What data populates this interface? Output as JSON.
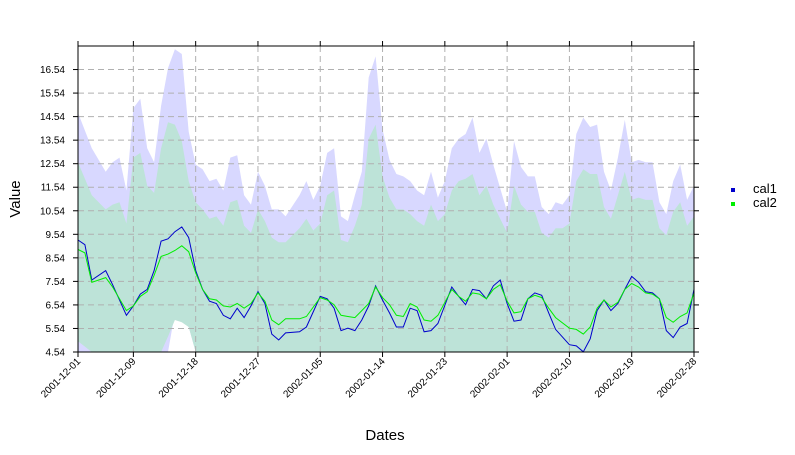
{
  "chart_data": {
    "type": "line",
    "title": "",
    "xlabel": "Dates",
    "ylabel": "Value",
    "ylim": [
      4.54,
      17.54
    ],
    "y_ticks": [
      4.54,
      5.54,
      6.54,
      7.54,
      8.54,
      9.54,
      10.54,
      11.54,
      12.54,
      13.54,
      14.54,
      15.54,
      16.54
    ],
    "y_tick_labels": [
      "4.54",
      "5.54",
      "6.54",
      "7.54",
      "8.54",
      "9.54",
      "10.54",
      "11.54",
      "12.54",
      "13.54",
      "14.54",
      "15.54",
      "16.54"
    ],
    "x_range": [
      "2001-12-01",
      "2002-02-28"
    ],
    "x_ticks": [
      "2001-12-01",
      "2001-12-09",
      "2001-12-18",
      "2001-12-27",
      "2002-01-05",
      "2002-01-14",
      "2002-01-23",
      "2002-02-01",
      "2002-02-10",
      "2002-02-19",
      "2002-02-28"
    ],
    "grid": true,
    "grid_style": "dashed",
    "legend_position": "right",
    "colors": {
      "cal1": "#0000cc",
      "cal2": "#00ee00",
      "cal1_band": "#d8d8ff",
      "cal2_band": "#bde3d8",
      "grid": "#b0b0b0"
    },
    "series": [
      {
        "name": "cal1",
        "x": [
          "2001-12-01",
          "2001-12-02",
          "2001-12-03",
          "2001-12-05",
          "2001-12-06",
          "2001-12-08",
          "2001-12-09",
          "2001-12-10",
          "2001-12-11",
          "2001-12-12",
          "2001-12-13",
          "2001-12-14",
          "2001-12-15",
          "2001-12-16",
          "2001-12-17",
          "2001-12-18",
          "2001-12-19",
          "2001-12-20",
          "2001-12-21",
          "2001-12-22",
          "2001-12-23",
          "2001-12-24",
          "2001-12-25",
          "2001-12-26",
          "2001-12-27",
          "2001-12-28",
          "2001-12-29",
          "2001-12-30",
          "2001-12-31",
          "2002-01-02",
          "2002-01-03",
          "2002-01-05",
          "2002-01-06",
          "2002-01-07",
          "2002-01-08",
          "2002-01-09",
          "2002-01-10",
          "2002-01-11",
          "2002-01-12",
          "2002-01-13",
          "2002-01-14",
          "2002-01-15",
          "2002-01-16",
          "2002-01-17",
          "2002-01-18",
          "2002-01-19",
          "2002-01-20",
          "2002-01-21",
          "2002-01-22",
          "2002-01-24",
          "2002-01-25",
          "2002-01-26",
          "2002-01-27",
          "2002-01-28",
          "2002-01-29",
          "2002-01-30",
          "2002-01-31",
          "2002-02-01",
          "2002-02-02",
          "2002-02-03",
          "2002-02-04",
          "2002-02-05",
          "2002-02-06",
          "2002-02-07",
          "2002-02-08",
          "2002-02-10",
          "2002-02-11",
          "2002-02-12",
          "2002-02-13",
          "2002-02-14",
          "2002-02-15",
          "2002-02-16",
          "2002-02-17",
          "2002-02-18",
          "2002-02-19",
          "2002-02-20",
          "2002-02-21",
          "2002-02-22",
          "2002-02-23",
          "2002-02-24",
          "2002-02-25",
          "2002-02-26",
          "2002-02-27",
          "2002-02-28"
        ],
        "y": [
          9.3,
          9.1,
          7.6,
          8.0,
          7.4,
          6.1,
          6.5,
          7.0,
          7.2,
          8.0,
          9.25,
          9.35,
          9.65,
          9.85,
          9.4,
          8.0,
          7.2,
          6.7,
          6.6,
          6.1,
          5.95,
          6.4,
          6.0,
          6.5,
          7.1,
          6.6,
          5.3,
          5.05,
          5.35,
          5.4,
          5.6,
          6.9,
          6.8,
          6.4,
          5.45,
          5.55,
          5.45,
          5.9,
          6.5,
          7.35,
          6.75,
          6.2,
          5.6,
          5.6,
          6.4,
          6.3,
          5.4,
          5.45,
          5.75,
          7.3,
          6.9,
          6.55,
          7.2,
          7.15,
          6.8,
          7.35,
          7.6,
          6.6,
          5.85,
          5.9,
          6.8,
          7.05,
          6.95,
          6.2,
          5.5,
          4.85,
          4.8,
          4.55,
          5.1,
          6.3,
          6.75,
          6.3,
          6.6,
          7.2,
          7.75,
          7.5,
          7.1,
          7.05,
          6.8,
          5.45,
          5.15,
          5.6,
          5.75,
          7.2
        ]
      },
      {
        "name": "cal2",
        "x": [
          "2001-12-01",
          "2001-12-02",
          "2001-12-03",
          "2001-12-05",
          "2001-12-06",
          "2001-12-08",
          "2001-12-09",
          "2001-12-10",
          "2001-12-11",
          "2001-12-12",
          "2001-12-13",
          "2001-12-14",
          "2001-12-15",
          "2001-12-16",
          "2001-12-17",
          "2001-12-18",
          "2001-12-19",
          "2001-12-20",
          "2001-12-21",
          "2001-12-22",
          "2001-12-23",
          "2001-12-24",
          "2001-12-25",
          "2001-12-26",
          "2001-12-27",
          "2001-12-28",
          "2001-12-29",
          "2001-12-30",
          "2001-12-31",
          "2002-01-02",
          "2002-01-03",
          "2002-01-05",
          "2002-01-06",
          "2002-01-07",
          "2002-01-08",
          "2002-01-09",
          "2002-01-10",
          "2002-01-11",
          "2002-01-12",
          "2002-01-13",
          "2002-01-14",
          "2002-01-15",
          "2002-01-16",
          "2002-01-17",
          "2002-01-18",
          "2002-01-19",
          "2002-01-20",
          "2002-01-21",
          "2002-01-22",
          "2002-01-24",
          "2002-01-25",
          "2002-01-26",
          "2002-01-27",
          "2002-01-28",
          "2002-01-29",
          "2002-01-30",
          "2002-01-31",
          "2002-02-01",
          "2002-02-02",
          "2002-02-03",
          "2002-02-04",
          "2002-02-05",
          "2002-02-06",
          "2002-02-07",
          "2002-02-08",
          "2002-02-10",
          "2002-02-11",
          "2002-02-12",
          "2002-02-13",
          "2002-02-14",
          "2002-02-15",
          "2002-02-16",
          "2002-02-17",
          "2002-02-18",
          "2002-02-19",
          "2002-02-20",
          "2002-02-21",
          "2002-02-22",
          "2002-02-23",
          "2002-02-24",
          "2002-02-25",
          "2002-02-26",
          "2002-02-27",
          "2002-02-28"
        ],
        "y": [
          8.9,
          8.75,
          7.5,
          7.7,
          7.3,
          6.3,
          6.5,
          6.9,
          7.1,
          7.8,
          8.6,
          8.7,
          8.85,
          9.05,
          8.8,
          7.9,
          7.2,
          6.8,
          6.75,
          6.5,
          6.45,
          6.6,
          6.4,
          6.6,
          7.05,
          6.7,
          5.9,
          5.7,
          5.95,
          5.95,
          6.05,
          6.85,
          6.75,
          6.55,
          6.1,
          6.05,
          6.0,
          6.3,
          6.6,
          7.3,
          6.85,
          6.55,
          6.1,
          6.05,
          6.6,
          6.45,
          5.9,
          5.85,
          6.1,
          7.2,
          6.9,
          6.7,
          7.05,
          7.0,
          6.8,
          7.2,
          7.4,
          6.7,
          6.2,
          6.25,
          6.8,
          6.95,
          6.85,
          6.4,
          6.0,
          5.55,
          5.5,
          5.3,
          5.6,
          6.4,
          6.75,
          6.45,
          6.65,
          7.2,
          7.45,
          7.3,
          7.05,
          7.0,
          6.8,
          6.0,
          5.8,
          6.05,
          6.2,
          7.05
        ]
      }
    ],
    "bands": [
      {
        "series": "cal1",
        "x": [
          "2001-12-01",
          "2001-12-03",
          "2001-12-05",
          "2001-12-06",
          "2001-12-07",
          "2001-12-08",
          "2001-12-09",
          "2001-12-10",
          "2001-12-11",
          "2001-12-12",
          "2001-12-13",
          "2001-12-14",
          "2001-12-15",
          "2001-12-16",
          "2001-12-17",
          "2001-12-18",
          "2001-12-19",
          "2001-12-20",
          "2001-12-21",
          "2001-12-22",
          "2001-12-23",
          "2001-12-24",
          "2001-12-25",
          "2001-12-26",
          "2001-12-27",
          "2001-12-28",
          "2001-12-29",
          "2001-12-30",
          "2001-12-31",
          "2002-01-02",
          "2002-01-03",
          "2002-01-04",
          "2002-01-05",
          "2002-01-06",
          "2002-01-07",
          "2002-01-08",
          "2002-01-09",
          "2002-01-10",
          "2002-01-11",
          "2002-01-12",
          "2002-01-13",
          "2002-01-14",
          "2002-01-15",
          "2002-01-16",
          "2002-01-17",
          "2002-01-18",
          "2002-01-19",
          "2002-01-20",
          "2002-01-21",
          "2002-01-22",
          "2002-01-23",
          "2002-01-24",
          "2002-01-25",
          "2002-01-26",
          "2002-01-27",
          "2002-01-28",
          "2002-01-29",
          "2002-01-30",
          "2002-01-31",
          "2002-02-01",
          "2002-02-02",
          "2002-02-03",
          "2002-02-04",
          "2002-02-05",
          "2002-02-06",
          "2002-02-07",
          "2002-02-08",
          "2002-02-09",
          "2002-02-10",
          "2002-02-11",
          "2002-02-12",
          "2002-02-13",
          "2002-02-14",
          "2002-02-15",
          "2002-02-16",
          "2002-02-17",
          "2002-02-18",
          "2002-02-19",
          "2002-02-20",
          "2002-02-21",
          "2002-02-22",
          "2002-02-23",
          "2002-02-24",
          "2002-02-25",
          "2002-02-26",
          "2002-02-27",
          "2002-02-28"
        ],
        "upper": [
          14.7,
          13.2,
          12.2,
          12.6,
          12.8,
          11.4,
          14.9,
          15.3,
          13.2,
          12.6,
          15.0,
          16.6,
          17.4,
          17.2,
          13.9,
          12.5,
          12.3,
          11.8,
          11.9,
          11.4,
          12.8,
          12.9,
          11.2,
          10.8,
          12.2,
          11.6,
          10.6,
          10.6,
          10.3,
          11.2,
          11.8,
          11.0,
          11.6,
          13.0,
          13.2,
          10.3,
          10.1,
          11.2,
          12.2,
          16.2,
          17.1,
          14.0,
          12.7,
          12.1,
          12.0,
          11.8,
          11.4,
          11.2,
          12.2,
          11.1,
          11.8,
          13.2,
          13.6,
          13.8,
          14.5,
          13.0,
          13.6,
          12.5,
          11.5,
          10.5,
          13.5,
          12.4,
          12.0,
          12.0,
          10.7,
          10.4,
          10.9,
          10.8,
          11.2,
          13.8,
          14.5,
          14.1,
          14.2,
          12.2,
          11.4,
          12.8,
          14.4,
          12.6,
          12.7,
          12.6,
          12.6,
          10.9,
          10.4,
          11.8,
          12.5,
          11.0,
          11.6
        ],
        "lower": [
          4.54,
          4.54,
          4.54,
          4.54,
          4.54,
          4.54,
          4.54,
          4.54,
          4.54,
          4.54,
          4.54,
          4.54,
          6.2,
          5.9,
          5.6,
          4.54,
          4.54,
          4.54,
          4.54,
          4.54,
          4.54,
          4.54,
          4.54,
          4.54,
          4.54,
          4.54,
          4.54,
          4.54,
          4.54,
          4.54,
          4.54,
          4.54,
          4.54,
          4.54,
          4.54,
          4.54,
          4.54,
          4.54,
          4.54,
          4.54,
          4.54,
          4.54,
          4.54,
          4.54,
          4.54,
          4.54,
          4.54,
          4.54,
          4.54,
          4.54,
          4.54,
          4.54,
          4.54,
          4.54,
          4.54,
          4.54,
          4.54,
          4.54,
          4.54,
          4.54,
          4.54,
          4.54,
          4.54,
          4.54,
          4.54,
          4.54,
          4.54,
          4.54,
          4.54,
          4.54,
          4.54,
          4.54,
          4.54,
          4.54,
          4.54,
          4.54,
          4.54,
          4.54,
          4.54,
          4.54,
          4.54,
          4.54,
          4.54,
          4.54,
          4.54,
          4.54,
          4.54
        ]
      },
      {
        "series": "cal2",
        "x": [
          "2001-12-01",
          "2001-12-03",
          "2001-12-05",
          "2001-12-06",
          "2001-12-07",
          "2001-12-08",
          "2001-12-09",
          "2001-12-10",
          "2001-12-11",
          "2001-12-12",
          "2001-12-13",
          "2001-12-14",
          "2001-12-15",
          "2001-12-16",
          "2001-12-17",
          "2001-12-18",
          "2001-12-19",
          "2001-12-20",
          "2001-12-21",
          "2001-12-22",
          "2001-12-23",
          "2001-12-24",
          "2001-12-25",
          "2001-12-26",
          "2001-12-27",
          "2001-12-28",
          "2001-12-29",
          "2001-12-30",
          "2001-12-31",
          "2002-01-02",
          "2002-01-03",
          "2002-01-04",
          "2002-01-05",
          "2002-01-06",
          "2002-01-07",
          "2002-01-08",
          "2002-01-09",
          "2002-01-10",
          "2002-01-11",
          "2002-01-12",
          "2002-01-13",
          "2002-01-14",
          "2002-01-15",
          "2002-01-16",
          "2002-01-17",
          "2002-01-18",
          "2002-01-19",
          "2002-01-20",
          "2002-01-21",
          "2002-01-22",
          "2002-01-23",
          "2002-01-24",
          "2002-01-25",
          "2002-01-26",
          "2002-01-27",
          "2002-01-28",
          "2002-01-29",
          "2002-01-30",
          "2002-01-31",
          "2002-02-01",
          "2002-02-02",
          "2002-02-03",
          "2002-02-04",
          "2002-02-05",
          "2002-02-06",
          "2002-02-07",
          "2002-02-08",
          "2002-02-09",
          "2002-02-10",
          "2002-02-11",
          "2002-02-12",
          "2002-02-13",
          "2002-02-14",
          "2002-02-15",
          "2002-02-16",
          "2002-02-17",
          "2002-02-18",
          "2002-02-19",
          "2002-02-20",
          "2002-02-21",
          "2002-02-22",
          "2002-02-23",
          "2002-02-24",
          "2002-02-25",
          "2002-02-26",
          "2002-02-27",
          "2002-02-28"
        ],
        "upper": [
          12.6,
          11.2,
          10.6,
          10.8,
          10.9,
          10.0,
          12.8,
          13.0,
          11.6,
          11.3,
          13.2,
          14.3,
          14.2,
          13.5,
          11.8,
          10.9,
          10.6,
          10.2,
          10.3,
          9.9,
          10.9,
          11.0,
          9.9,
          9.6,
          10.6,
          10.1,
          9.4,
          9.2,
          9.2,
          9.8,
          10.2,
          9.7,
          10.0,
          11.2,
          11.4,
          9.3,
          9.2,
          9.9,
          10.8,
          13.6,
          14.2,
          12.0,
          11.1,
          10.6,
          10.6,
          10.4,
          10.1,
          9.9,
          10.8,
          10.1,
          10.4,
          11.4,
          11.8,
          11.9,
          12.1,
          11.2,
          11.6,
          10.8,
          10.2,
          9.6,
          11.6,
          10.8,
          10.5,
          10.5,
          9.6,
          9.4,
          9.8,
          9.8,
          10.0,
          11.8,
          12.3,
          12.1,
          12.1,
          10.7,
          10.2,
          11.2,
          12.2,
          11.0,
          11.1,
          11.0,
          11.0,
          9.8,
          9.5,
          10.5,
          10.9,
          9.9,
          10.3
        ],
        "lower": [
          5.0,
          4.54,
          4.54,
          4.54,
          4.54,
          4.54,
          4.54,
          4.54,
          4.54,
          4.54,
          4.54,
          5.2,
          5.9,
          5.8,
          5.6,
          4.54,
          4.54,
          4.54,
          4.54,
          4.54,
          4.54,
          4.54,
          4.54,
          4.54,
          4.54,
          4.54,
          4.54,
          4.54,
          4.54,
          4.54,
          4.54,
          4.54,
          4.54,
          4.54,
          4.54,
          4.54,
          4.54,
          4.54,
          4.54,
          4.54,
          4.54,
          4.54,
          4.54,
          4.54,
          4.54,
          4.54,
          4.54,
          4.54,
          4.54,
          4.54,
          4.54,
          4.54,
          4.54,
          4.54,
          4.54,
          4.54,
          4.54,
          4.54,
          4.54,
          4.54,
          4.54,
          4.54,
          4.54,
          4.54,
          4.54,
          4.54,
          4.54,
          4.54,
          4.54,
          4.54,
          4.54,
          4.54,
          4.54,
          4.54,
          4.54,
          4.54,
          4.54,
          4.54,
          4.54,
          4.54,
          4.54,
          4.54,
          4.54,
          4.54,
          4.54,
          4.54,
          4.54
        ]
      }
    ]
  }
}
